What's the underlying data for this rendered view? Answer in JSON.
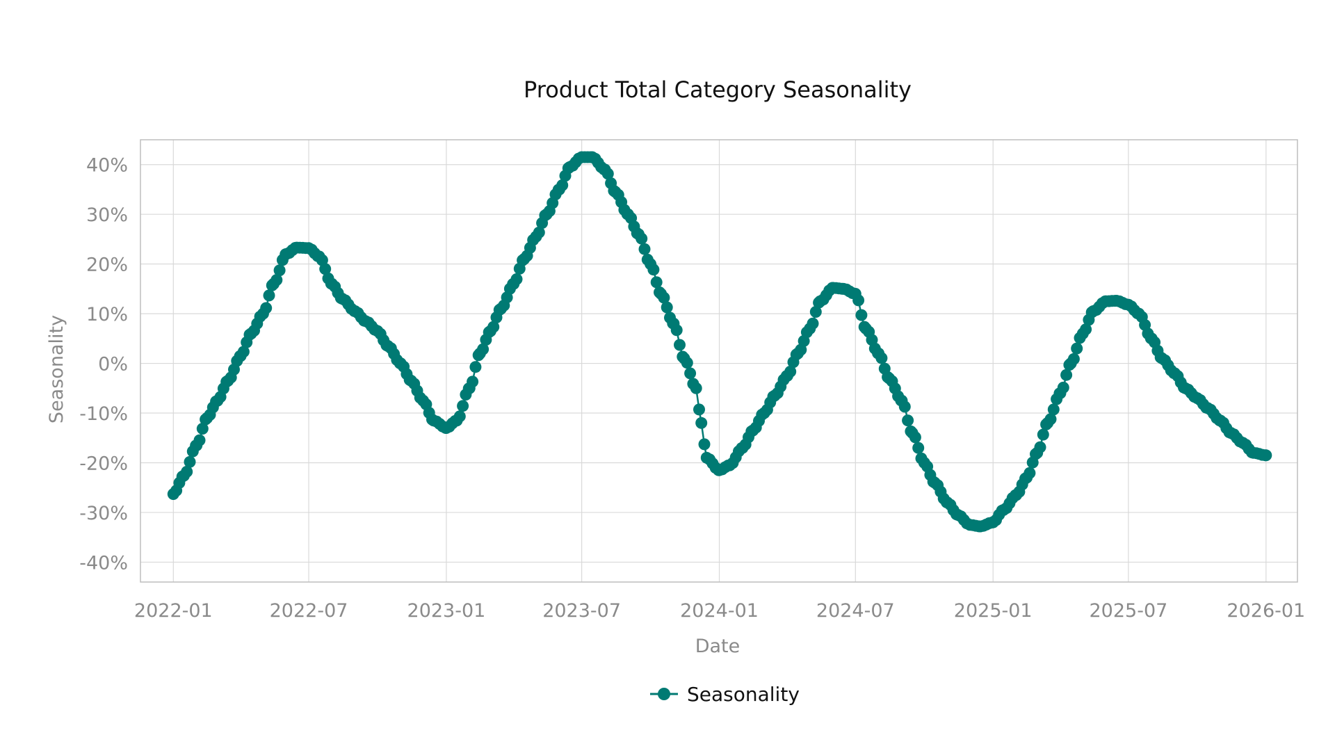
{
  "chart_data": {
    "type": "line",
    "title": "Product Total Category Seasonality",
    "xlabel": "Date",
    "ylabel": "Seasonality",
    "x_tick_labels": [
      "2022-01",
      "2022-07",
      "2023-01",
      "2023-07",
      "2024-01",
      "2024-07",
      "2025-01",
      "2025-07",
      "2026-01"
    ],
    "y_tick_labels": [
      "40%",
      "30%",
      "20%",
      "10%",
      "0%",
      "-10%",
      "-20%",
      "-30%",
      "-40%"
    ],
    "ylim": [
      -0.44,
      0.45
    ],
    "xlim": [
      "2021-11-18",
      "2026-02-12"
    ],
    "grid": true,
    "legend": "bottom-center",
    "series": [
      {
        "name": "Seasonality",
        "color": "#007a73",
        "marker": "circle",
        "x": [
          "2022-01-01",
          "2022-01-15",
          "2022-02-01",
          "2022-02-15",
          "2022-03-01",
          "2022-03-15",
          "2022-04-01",
          "2022-04-15",
          "2022-05-01",
          "2022-05-15",
          "2022-06-01",
          "2022-06-15",
          "2022-07-01",
          "2022-07-15",
          "2022-08-01",
          "2022-08-15",
          "2022-09-01",
          "2022-09-15",
          "2022-10-01",
          "2022-10-15",
          "2022-11-01",
          "2022-11-15",
          "2022-12-01",
          "2022-12-15",
          "2023-01-01",
          "2023-01-15",
          "2023-02-01",
          "2023-02-15",
          "2023-03-01",
          "2023-03-15",
          "2023-04-01",
          "2023-04-15",
          "2023-05-01",
          "2023-05-15",
          "2023-06-01",
          "2023-06-15",
          "2023-07-01",
          "2023-07-15",
          "2023-08-01",
          "2023-08-15",
          "2023-09-01",
          "2023-09-15",
          "2023-10-01",
          "2023-10-15",
          "2023-11-01",
          "2023-11-15",
          "2023-12-01",
          "2023-12-08",
          "2023-12-15",
          "2024-01-01",
          "2024-01-15",
          "2024-02-01",
          "2024-02-15",
          "2024-03-01",
          "2024-03-15",
          "2024-04-01",
          "2024-04-15",
          "2024-05-01",
          "2024-05-15",
          "2024-06-01",
          "2024-06-15",
          "2024-07-01",
          "2024-07-15",
          "2024-08-01",
          "2024-08-15",
          "2024-09-01",
          "2024-09-15",
          "2024-10-01",
          "2024-10-15",
          "2024-11-01",
          "2024-11-15",
          "2024-12-01",
          "2024-12-15",
          "2025-01-01",
          "2025-01-15",
          "2025-02-01",
          "2025-02-15",
          "2025-03-01",
          "2025-03-15",
          "2025-04-01",
          "2025-04-15",
          "2025-05-01",
          "2025-05-15",
          "2025-06-01",
          "2025-06-15",
          "2025-07-01",
          "2025-07-15",
          "2025-08-01",
          "2025-08-15",
          "2025-09-01",
          "2025-09-15",
          "2025-10-01",
          "2025-10-15",
          "2025-11-01",
          "2025-11-15",
          "2025-12-01",
          "2025-12-15",
          "2026-01-01"
        ],
        "values": [
          -0.263,
          -0.226,
          -0.165,
          -0.11,
          -0.075,
          -0.035,
          0.015,
          0.06,
          0.1,
          0.16,
          0.22,
          0.233,
          0.232,
          0.215,
          0.16,
          0.13,
          0.105,
          0.085,
          0.065,
          0.035,
          0.0,
          -0.035,
          -0.075,
          -0.115,
          -0.13,
          -0.115,
          -0.05,
          0.02,
          0.065,
          0.11,
          0.16,
          0.21,
          0.255,
          0.3,
          0.35,
          0.395,
          0.415,
          0.415,
          0.39,
          0.345,
          0.3,
          0.26,
          0.2,
          0.14,
          0.08,
          0.01,
          -0.05,
          -0.12,
          -0.19,
          -0.215,
          -0.205,
          -0.17,
          -0.135,
          -0.1,
          -0.065,
          -0.025,
          0.02,
          0.07,
          0.125,
          0.152,
          0.15,
          0.14,
          0.07,
          0.02,
          -0.03,
          -0.075,
          -0.14,
          -0.2,
          -0.24,
          -0.28,
          -0.305,
          -0.325,
          -0.328,
          -0.32,
          -0.295,
          -0.265,
          -0.23,
          -0.18,
          -0.12,
          -0.06,
          0.0,
          0.06,
          0.105,
          0.125,
          0.126,
          0.118,
          0.1,
          0.05,
          0.01,
          -0.02,
          -0.05,
          -0.07,
          -0.09,
          -0.115,
          -0.14,
          -0.16,
          -0.18,
          -0.185
        ]
      }
    ]
  }
}
